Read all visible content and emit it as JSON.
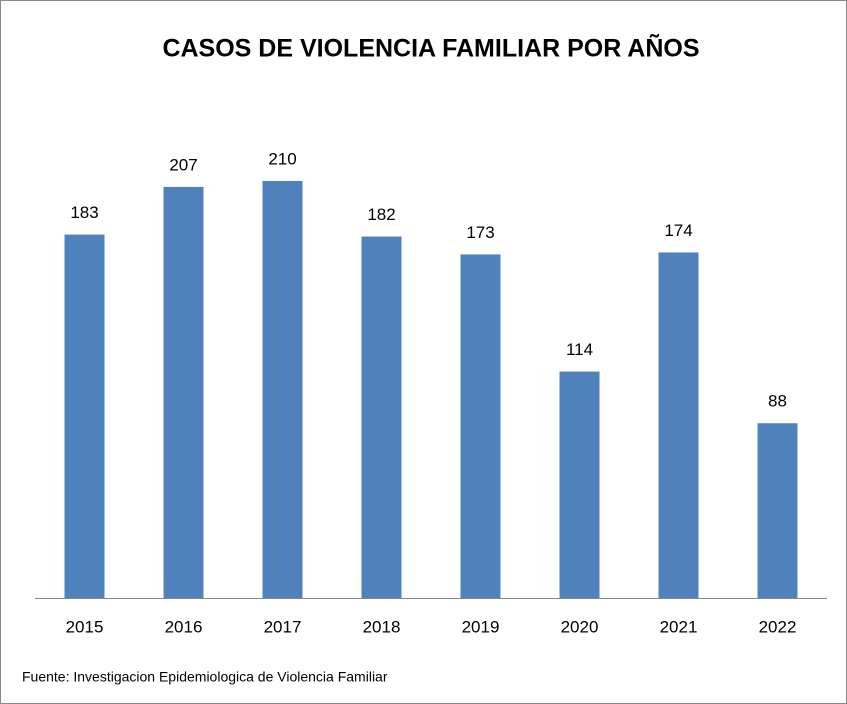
{
  "chart_data": {
    "type": "bar",
    "title": "CASOS DE VIOLENCIA FAMILIAR POR AÑOS",
    "categories": [
      "2015",
      "2016",
      "2017",
      "2018",
      "2019",
      "2020",
      "2021",
      "2022"
    ],
    "values": [
      183,
      207,
      210,
      182,
      173,
      114,
      174,
      88
    ],
    "color": "#4f81bd",
    "source": "Fuente: Investigacion Epidemiologica de Violencia Familiar"
  }
}
